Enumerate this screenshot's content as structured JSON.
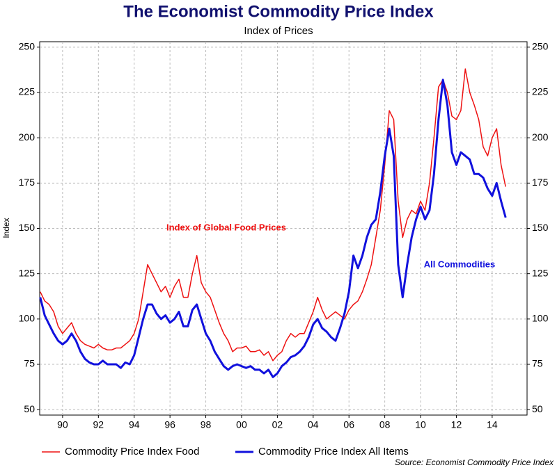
{
  "chart_data": {
    "type": "line",
    "title": "The Economist Commodity Price Index",
    "subtitle": "Index of Prices",
    "y_label": "Index",
    "source": "Source: Economist Commodity Price Index",
    "annotations": [
      {
        "text": "Index of Global Food Prices",
        "color": "#ee1111"
      },
      {
        "text": "All Commodities",
        "color": "#1111dd"
      }
    ],
    "x": [
      1988.75,
      1989,
      1989.25,
      1989.5,
      1989.75,
      1990,
      1990.25,
      1990.5,
      1990.75,
      1991,
      1991.25,
      1991.5,
      1991.75,
      1992,
      1992.25,
      1992.5,
      1992.75,
      1993,
      1993.25,
      1993.5,
      1993.75,
      1994,
      1994.25,
      1994.5,
      1994.75,
      1995,
      1995.25,
      1995.5,
      1995.75,
      1996,
      1996.25,
      1996.5,
      1996.75,
      1997,
      1997.25,
      1997.5,
      1997.75,
      1998,
      1998.25,
      1998.5,
      1998.75,
      1999,
      1999.25,
      1999.5,
      1999.75,
      2000,
      2000.25,
      2000.5,
      2000.75,
      2001,
      2001.25,
      2001.5,
      2001.75,
      2002,
      2002.25,
      2002.5,
      2002.75,
      2003,
      2003.25,
      2003.5,
      2003.75,
      2004,
      2004.25,
      2004.5,
      2004.75,
      2005,
      2005.25,
      2005.5,
      2005.75,
      2006,
      2006.25,
      2006.5,
      2006.75,
      2007,
      2007.25,
      2007.5,
      2007.75,
      2008,
      2008.25,
      2008.5,
      2008.75,
      2009,
      2009.25,
      2009.5,
      2009.75,
      2010,
      2010.25,
      2010.5,
      2010.75,
      2011,
      2011.25,
      2011.5,
      2011.75,
      2012,
      2012.25,
      2012.5,
      2012.75,
      2013,
      2013.25,
      2013.5,
      2013.75,
      2014,
      2014.25,
      2014.5,
      2014.75
    ],
    "series": [
      {
        "name": "Commodity Price Index Food",
        "color": "#ee1111",
        "width": 1.5,
        "values": [
          115,
          110,
          108,
          104,
          96,
          92,
          95,
          98,
          92,
          88,
          86,
          85,
          84,
          86,
          84,
          83,
          83,
          84,
          84,
          86,
          88,
          92,
          100,
          115,
          130,
          125,
          120,
          115,
          118,
          112,
          118,
          122,
          112,
          112,
          125,
          135,
          120,
          115,
          112,
          105,
          98,
          92,
          88,
          82,
          84,
          84,
          85,
          82,
          82,
          83,
          80,
          82,
          77,
          80,
          82,
          88,
          92,
          90,
          92,
          92,
          98,
          104,
          112,
          105,
          100,
          102,
          104,
          102,
          100,
          105,
          108,
          110,
          115,
          122,
          130,
          145,
          160,
          185,
          215,
          210,
          165,
          145,
          155,
          160,
          158,
          165,
          160,
          175,
          200,
          228,
          232,
          225,
          212,
          210,
          215,
          238,
          225,
          218,
          210,
          195,
          190,
          200,
          205,
          185,
          173
        ]
      },
      {
        "name": "Commodity Price Index All Items",
        "color": "#1111dd",
        "width": 3,
        "values": [
          112,
          102,
          97,
          92,
          88,
          86,
          88,
          92,
          88,
          82,
          78,
          76,
          75,
          75,
          77,
          75,
          75,
          75,
          73,
          76,
          75,
          80,
          90,
          100,
          108,
          108,
          103,
          100,
          102,
          98,
          100,
          104,
          96,
          96,
          105,
          108,
          100,
          92,
          88,
          82,
          78,
          74,
          72,
          74,
          75,
          74,
          73,
          74,
          72,
          72,
          70,
          72,
          68,
          70,
          74,
          76,
          79,
          80,
          82,
          85,
          90,
          97,
          100,
          95,
          93,
          90,
          88,
          95,
          103,
          115,
          135,
          128,
          135,
          145,
          152,
          155,
          170,
          190,
          205,
          190,
          130,
          112,
          130,
          145,
          155,
          162,
          155,
          160,
          180,
          210,
          232,
          218,
          192,
          185,
          192,
          190,
          188,
          180,
          180,
          178,
          172,
          168,
          175,
          165,
          156
        ]
      }
    ],
    "xlim": [
      1988.72,
      2015.95
    ],
    "xticks": [
      {
        "value": 1990,
        "label": "90"
      },
      {
        "value": 1992,
        "label": "92"
      },
      {
        "value": 1994,
        "label": "94"
      },
      {
        "value": 1996,
        "label": "96"
      },
      {
        "value": 1998,
        "label": "98"
      },
      {
        "value": 2000,
        "label": "00"
      },
      {
        "value": 2002,
        "label": "02"
      },
      {
        "value": 2004,
        "label": "04"
      },
      {
        "value": 2006,
        "label": "06"
      },
      {
        "value": 2008,
        "label": "08"
      },
      {
        "value": 2010,
        "label": "10"
      },
      {
        "value": 2012,
        "label": "12"
      },
      {
        "value": 2014,
        "label": "14"
      }
    ],
    "ylim": [
      47,
      253
    ],
    "yticks": [
      50,
      75,
      100,
      125,
      150,
      175,
      200,
      225,
      250
    ],
    "grid": true
  }
}
